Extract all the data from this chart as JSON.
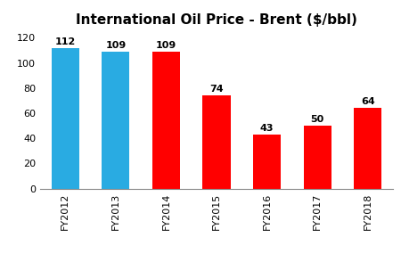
{
  "title": "International Oil Price - Brent ($/bbl)",
  "categories": [
    "FY2012",
    "FY2013",
    "FY2014",
    "FY2015",
    "FY2016",
    "FY2017",
    "FY2018"
  ],
  "values": [
    112,
    109,
    109,
    74,
    43,
    50,
    64
  ],
  "bar_colors": [
    "#29ABE2",
    "#29ABE2",
    "#FF0000",
    "#FF0000",
    "#FF0000",
    "#FF0000",
    "#FF0000"
  ],
  "ylim": [
    0,
    125
  ],
  "yticks": [
    0,
    20,
    40,
    60,
    80,
    100,
    120
  ],
  "title_fontsize": 11,
  "label_fontsize": 8,
  "tick_fontsize": 8,
  "background_color": "#FFFFFF"
}
